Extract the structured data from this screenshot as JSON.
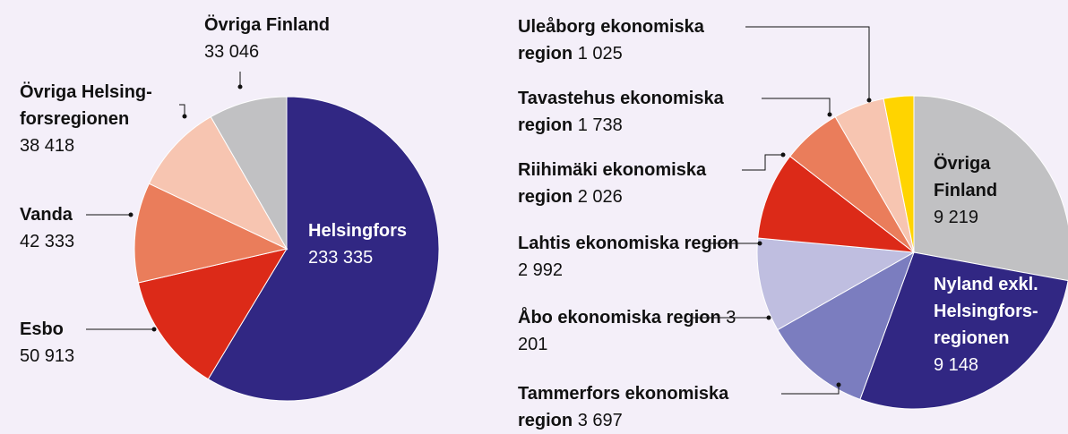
{
  "chart_data": [
    {
      "type": "pie",
      "categories": [
        "Helsingfors",
        "Esbo",
        "Vanda",
        "Övriga Helsing­forsregionen",
        "Övriga Finland"
      ],
      "values": [
        233335,
        50913,
        42333,
        38418,
        33046
      ],
      "value_labels": [
        "233 335",
        "50 913",
        "42 333",
        "38 418",
        "33 046"
      ],
      "colors": [
        "#312783",
        "#dc2a18",
        "#ea7d5b",
        "#f7c5b1",
        "#c1c1c3"
      ]
    },
    {
      "type": "pie",
      "categories": [
        "Övriga Finland",
        "Nyland exkl. Helsingfors­regionen",
        "Tammerfors ekonomiska region",
        "Åbo ekonomiska region",
        "Lahtis ekonomiska region",
        "Riihimäki ekonomiska region",
        "Tavastehus ekonomiska region",
        "Uleåborg ekonomiska region"
      ],
      "values": [
        9219,
        9148,
        3697,
        3201,
        2992,
        2026,
        1738,
        1025
      ],
      "value_labels": [
        "9 219",
        "9 148",
        "3 697",
        "3 201",
        "2 992",
        "2 026",
        "1 738",
        "1 025"
      ],
      "colors": [
        "#c1c1c3",
        "#312783",
        "#7b7dbf",
        "#bfbee0",
        "#dc2a18",
        "#ea7d5b",
        "#f7c5b1",
        "#ffd400"
      ]
    }
  ]
}
